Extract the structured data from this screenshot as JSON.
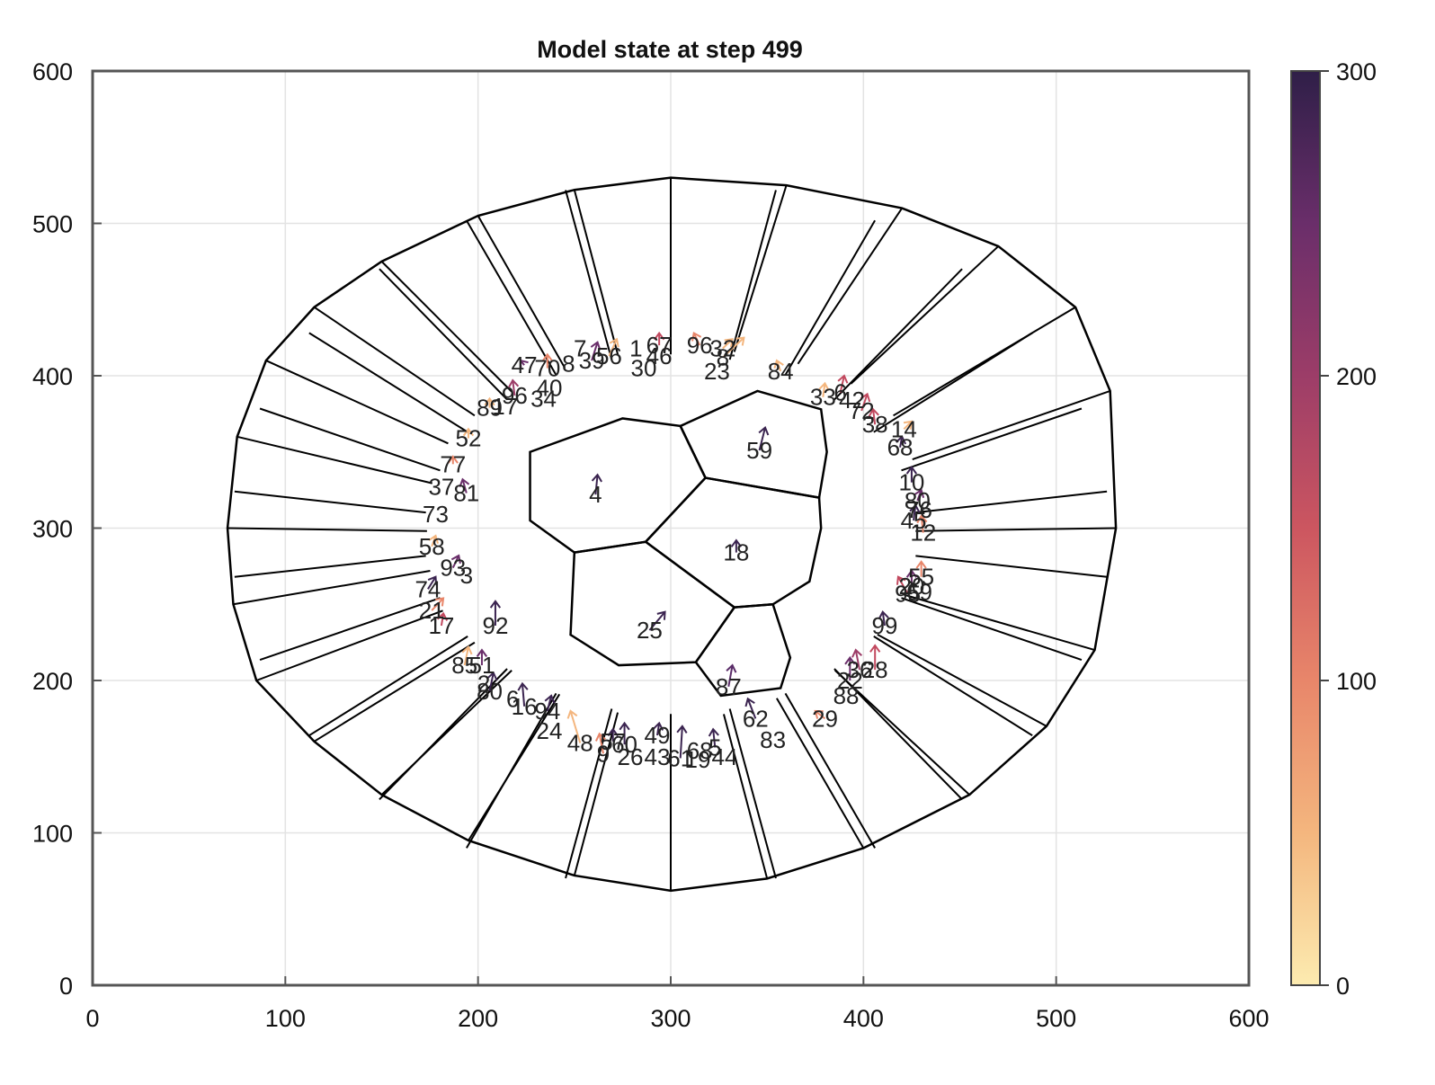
{
  "chart_data": {
    "type": "scatter",
    "title": "Model state at step 499",
    "xlabel": "",
    "ylabel": "",
    "xlim": [
      0,
      600
    ],
    "ylim": [
      0,
      600
    ],
    "xticks": [
      "0",
      "100",
      "200",
      "300",
      "400",
      "500",
      "600"
    ],
    "yticks": [
      "0",
      "100",
      "200",
      "300",
      "400",
      "500",
      "600"
    ],
    "grid": true,
    "colorbar": {
      "range": [
        0,
        300
      ],
      "ticks": [
        "0",
        "100",
        "200",
        "300"
      ],
      "colormap": [
        "#fcebb0",
        "#f4b67e",
        "#e8866a",
        "#cc5660",
        "#9c3d68",
        "#6a2e6a",
        "#2f1f48"
      ]
    },
    "outer_boundary": [
      [
        300,
        530
      ],
      [
        360,
        525
      ],
      [
        420,
        510
      ],
      [
        470,
        485
      ],
      [
        510,
        445
      ],
      [
        528,
        390
      ],
      [
        531,
        300
      ],
      [
        520,
        220
      ],
      [
        495,
        170
      ],
      [
        455,
        125
      ],
      [
        400,
        90
      ],
      [
        350,
        70
      ],
      [
        300,
        62
      ],
      [
        250,
        72
      ],
      [
        195,
        95
      ],
      [
        150,
        125
      ],
      [
        115,
        160
      ],
      [
        85,
        200
      ],
      [
        73,
        250
      ],
      [
        70,
        300
      ],
      [
        75,
        360
      ],
      [
        90,
        410
      ],
      [
        115,
        445
      ],
      [
        150,
        475
      ],
      [
        200,
        505
      ],
      [
        250,
        522
      ]
    ],
    "inner_cells": [
      {
        "label": "4",
        "x": 261,
        "y": 322,
        "ax": 262,
        "ay": 335,
        "arrow_color": "#3b2450",
        "polygon": [
          [
            227,
            350
          ],
          [
            275,
            372
          ],
          [
            305,
            367
          ],
          [
            318,
            333
          ],
          [
            287,
            291
          ],
          [
            250,
            284
          ],
          [
            227,
            305
          ]
        ]
      },
      {
        "label": "59",
        "x": 346,
        "y": 351,
        "ax": 349,
        "ay": 366,
        "arrow_color": "#3b2450",
        "polygon": [
          [
            305,
            367
          ],
          [
            345,
            390
          ],
          [
            378,
            378
          ],
          [
            381,
            350
          ],
          [
            377,
            320
          ],
          [
            318,
            333
          ]
        ]
      },
      {
        "label": "18",
        "x": 334,
        "y": 284,
        "ax": 334,
        "ay": 292,
        "arrow_color": "#3b2450",
        "polygon": [
          [
            318,
            333
          ],
          [
            377,
            320
          ],
          [
            378,
            300
          ],
          [
            372,
            265
          ],
          [
            353,
            250
          ],
          [
            333,
            248
          ],
          [
            287,
            291
          ]
        ]
      },
      {
        "label": "25",
        "x": 289,
        "y": 233,
        "ax": 297,
        "ay": 245,
        "arrow_color": "#3b2450",
        "polygon": [
          [
            250,
            284
          ],
          [
            287,
            291
          ],
          [
            333,
            248
          ],
          [
            313,
            212
          ],
          [
            273,
            210
          ],
          [
            248,
            230
          ]
        ]
      },
      {
        "label": "87",
        "x": 330,
        "y": 196,
        "ax": 332,
        "ay": 210,
        "arrow_color": "#5a2c68",
        "polygon": [
          [
            313,
            212
          ],
          [
            333,
            248
          ],
          [
            353,
            250
          ],
          [
            362,
            215
          ],
          [
            357,
            195
          ],
          [
            326,
            190
          ]
        ]
      }
    ],
    "points": [
      {
        "label": "67",
        "x": 294,
        "y": 420,
        "ax": 294,
        "ay": 428,
        "arrow_color": "#c2495f"
      },
      {
        "label": "96",
        "x": 315,
        "y": 420,
        "ax": 312,
        "ay": 428,
        "arrow_color": "#e8866a"
      },
      {
        "label": "32",
        "x": 327,
        "y": 418,
        "ax": 332,
        "ay": 424,
        "arrow_color": "#f4b67e"
      },
      {
        "label": "8",
        "x": 327,
        "y": 412,
        "ax": 338,
        "ay": 425,
        "arrow_color": "#f4b67e"
      },
      {
        "label": "23",
        "x": 324,
        "y": 403,
        "ax": 0,
        "ay": 0,
        "arrow_color": ""
      },
      {
        "label": "46",
        "x": 294,
        "y": 413,
        "ax": 0,
        "ay": 0,
        "arrow_color": ""
      },
      {
        "label": "30",
        "x": 286,
        "y": 405,
        "ax": 0,
        "ay": 0,
        "arrow_color": ""
      },
      {
        "label": "56",
        "x": 268,
        "y": 413,
        "ax": 272,
        "ay": 424,
        "arrow_color": "#f4b67e"
      },
      {
        "label": "1",
        "x": 282,
        "y": 418,
        "ax": 0,
        "ay": 0,
        "arrow_color": ""
      },
      {
        "label": "39",
        "x": 259,
        "y": 410,
        "ax": 262,
        "ay": 422,
        "arrow_color": "#6a2e6a"
      },
      {
        "label": "7",
        "x": 253,
        "y": 418,
        "ax": 0,
        "ay": 0,
        "arrow_color": ""
      },
      {
        "label": "8",
        "x": 247,
        "y": 408,
        "ax": 0,
        "ay": 0,
        "arrow_color": ""
      },
      {
        "label": "70",
        "x": 236,
        "y": 405,
        "ax": 236,
        "ay": 414,
        "arrow_color": "#e8866a"
      },
      {
        "label": "47",
        "x": 224,
        "y": 407,
        "ax": 222,
        "ay": 410,
        "arrow_color": "#6a2e6a"
      },
      {
        "label": "40",
        "x": 237,
        "y": 392,
        "ax": 0,
        "ay": 0,
        "arrow_color": ""
      },
      {
        "label": "34",
        "x": 234,
        "y": 385,
        "ax": 0,
        "ay": 0,
        "arrow_color": ""
      },
      {
        "label": "96",
        "x": 219,
        "y": 387,
        "ax": 218,
        "ay": 397,
        "arrow_color": "#9c3d68"
      },
      {
        "label": "17",
        "x": 214,
        "y": 380,
        "ax": 0,
        "ay": 0,
        "arrow_color": ""
      },
      {
        "label": "89",
        "x": 206,
        "y": 379,
        "ax": 206,
        "ay": 385,
        "arrow_color": "#f4b67e"
      },
      {
        "label": "52",
        "x": 195,
        "y": 359,
        "ax": 195,
        "ay": 365,
        "arrow_color": "#f4b67e"
      },
      {
        "label": "77",
        "x": 187,
        "y": 342,
        "ax": 187,
        "ay": 347,
        "arrow_color": "#e8866a"
      },
      {
        "label": "37",
        "x": 181,
        "y": 327,
        "ax": 0,
        "ay": 0,
        "arrow_color": ""
      },
      {
        "label": "81",
        "x": 194,
        "y": 323,
        "ax": 192,
        "ay": 332,
        "arrow_color": "#6a2e6a"
      },
      {
        "label": "73",
        "x": 178,
        "y": 309,
        "ax": 0,
        "ay": 0,
        "arrow_color": ""
      },
      {
        "label": "58",
        "x": 176,
        "y": 288,
        "ax": 178,
        "ay": 295,
        "arrow_color": "#f4b67e"
      },
      {
        "label": "93",
        "x": 187,
        "y": 274,
        "ax": 190,
        "ay": 282,
        "arrow_color": "#6a2e6a"
      },
      {
        "label": "3",
        "x": 194,
        "y": 269,
        "ax": 0,
        "ay": 0,
        "arrow_color": ""
      },
      {
        "label": "74",
        "x": 174,
        "y": 260,
        "ax": 178,
        "ay": 268,
        "arrow_color": "#3b2450"
      },
      {
        "label": "21",
        "x": 176,
        "y": 246,
        "ax": 182,
        "ay": 254,
        "arrow_color": "#e8866a"
      },
      {
        "label": "17",
        "x": 181,
        "y": 236,
        "ax": 182,
        "ay": 244,
        "arrow_color": "#c2495f"
      },
      {
        "label": "92",
        "x": 209,
        "y": 236,
        "ax": 209,
        "ay": 252,
        "arrow_color": "#3b2450"
      },
      {
        "label": "85",
        "x": 193,
        "y": 210,
        "ax": 195,
        "ay": 222,
        "arrow_color": "#f4b67e"
      },
      {
        "label": "51",
        "x": 202,
        "y": 210,
        "ax": 202,
        "ay": 220,
        "arrow_color": "#6a2e6a"
      },
      {
        "label": "2",
        "x": 203,
        "y": 198,
        "ax": 0,
        "ay": 0,
        "arrow_color": ""
      },
      {
        "label": "80",
        "x": 206,
        "y": 193,
        "ax": 208,
        "ay": 205,
        "arrow_color": "#3b2450"
      },
      {
        "label": "6",
        "x": 218,
        "y": 188,
        "ax": 0,
        "ay": 0,
        "arrow_color": ""
      },
      {
        "label": "16",
        "x": 224,
        "y": 183,
        "ax": 223,
        "ay": 198,
        "arrow_color": "#3b2450"
      },
      {
        "label": "94",
        "x": 236,
        "y": 180,
        "ax": 238,
        "ay": 190,
        "arrow_color": "#3b2450"
      },
      {
        "label": "24",
        "x": 237,
        "y": 167,
        "ax": 0,
        "ay": 0,
        "arrow_color": ""
      },
      {
        "label": "48",
        "x": 253,
        "y": 159,
        "ax": 248,
        "ay": 180,
        "arrow_color": "#f4b67e"
      },
      {
        "label": "9",
        "x": 265,
        "y": 152,
        "ax": 263,
        "ay": 165,
        "arrow_color": "#e8866a"
      },
      {
        "label": "57",
        "x": 270,
        "y": 160,
        "ax": 270,
        "ay": 168,
        "arrow_color": "#3b2450"
      },
      {
        "label": "60",
        "x": 276,
        "y": 158,
        "ax": 276,
        "ay": 172,
        "arrow_color": "#3b2450"
      },
      {
        "label": "26",
        "x": 279,
        "y": 150,
        "ax": 0,
        "ay": 0,
        "arrow_color": ""
      },
      {
        "label": "49",
        "x": 293,
        "y": 164,
        "ax": 294,
        "ay": 172,
        "arrow_color": "#3b2450"
      },
      {
        "label": "43",
        "x": 293,
        "y": 150,
        "ax": 0,
        "ay": 0,
        "arrow_color": ""
      },
      {
        "label": "61",
        "x": 305,
        "y": 149,
        "ax": 306,
        "ay": 170,
        "arrow_color": "#3b2450"
      },
      {
        "label": "68",
        "x": 315,
        "y": 154,
        "ax": 0,
        "ay": 0,
        "arrow_color": ""
      },
      {
        "label": "19",
        "x": 314,
        "y": 148,
        "ax": 0,
        "ay": 0,
        "arrow_color": ""
      },
      {
        "label": "5",
        "x": 323,
        "y": 156,
        "ax": 322,
        "ay": 168,
        "arrow_color": "#3b2450"
      },
      {
        "label": "44",
        "x": 328,
        "y": 150,
        "ax": 0,
        "ay": 0,
        "arrow_color": ""
      },
      {
        "label": "62",
        "x": 344,
        "y": 175,
        "ax": 340,
        "ay": 188,
        "arrow_color": "#3b2450"
      },
      {
        "label": "83",
        "x": 353,
        "y": 161,
        "ax": 0,
        "ay": 0,
        "arrow_color": ""
      },
      {
        "label": "29",
        "x": 380,
        "y": 175,
        "ax": 375,
        "ay": 180,
        "arrow_color": "#e8866a"
      },
      {
        "label": "88",
        "x": 391,
        "y": 190,
        "ax": 0,
        "ay": 0,
        "arrow_color": ""
      },
      {
        "label": "22",
        "x": 393,
        "y": 200,
        "ax": 393,
        "ay": 215,
        "arrow_color": "#6a2e6a"
      },
      {
        "label": "36",
        "x": 398,
        "y": 207,
        "ax": 396,
        "ay": 220,
        "arrow_color": "#9c3d68"
      },
      {
        "label": "28",
        "x": 406,
        "y": 207,
        "ax": 406,
        "ay": 223,
        "arrow_color": "#c2495f"
      },
      {
        "label": "99",
        "x": 411,
        "y": 236,
        "ax": 410,
        "ay": 245,
        "arrow_color": "#3b2450"
      },
      {
        "label": "95",
        "x": 423,
        "y": 257,
        "ax": 418,
        "ay": 268,
        "arrow_color": "#c2495f"
      },
      {
        "label": "55",
        "x": 430,
        "y": 268,
        "ax": 430,
        "ay": 278,
        "arrow_color": "#e8866a"
      },
      {
        "label": "20",
        "x": 425,
        "y": 262,
        "ax": 425,
        "ay": 272,
        "arrow_color": "#6a2e6a"
      },
      {
        "label": "69",
        "x": 429,
        "y": 258,
        "ax": 0,
        "ay": 0,
        "arrow_color": ""
      },
      {
        "label": "12",
        "x": 431,
        "y": 297,
        "ax": 430,
        "ay": 308,
        "arrow_color": "#e8866a"
      },
      {
        "label": "45",
        "x": 426,
        "y": 305,
        "ax": 427,
        "ay": 315,
        "arrow_color": "#3b2450"
      },
      {
        "label": "76",
        "x": 429,
        "y": 312,
        "ax": 0,
        "ay": 0,
        "arrow_color": ""
      },
      {
        "label": "80",
        "x": 428,
        "y": 318,
        "ax": 430,
        "ay": 325,
        "arrow_color": "#6a2e6a"
      },
      {
        "label": "10",
        "x": 425,
        "y": 330,
        "ax": 425,
        "ay": 340,
        "arrow_color": "#3b2450"
      },
      {
        "label": "68",
        "x": 419,
        "y": 353,
        "ax": 420,
        "ay": 360,
        "arrow_color": "#3b2450"
      },
      {
        "label": "14",
        "x": 421,
        "y": 365,
        "ax": 425,
        "ay": 370,
        "arrow_color": "#f4b67e"
      },
      {
        "label": "38",
        "x": 406,
        "y": 368,
        "ax": 405,
        "ay": 378,
        "arrow_color": "#c2495f"
      },
      {
        "label": "72",
        "x": 399,
        "y": 377,
        "ax": 402,
        "ay": 388,
        "arrow_color": "#c2495f"
      },
      {
        "label": "42",
        "x": 394,
        "y": 384,
        "ax": 0,
        "ay": 0,
        "arrow_color": ""
      },
      {
        "label": "33",
        "x": 379,
        "y": 386,
        "ax": 380,
        "ay": 395,
        "arrow_color": "#f4b67e"
      },
      {
        "label": "6",
        "x": 388,
        "y": 389,
        "ax": 390,
        "ay": 400,
        "arrow_color": "#c2495f"
      },
      {
        "label": "84",
        "x": 357,
        "y": 403,
        "ax": 355,
        "ay": 410,
        "arrow_color": "#f4b67e"
      }
    ]
  }
}
